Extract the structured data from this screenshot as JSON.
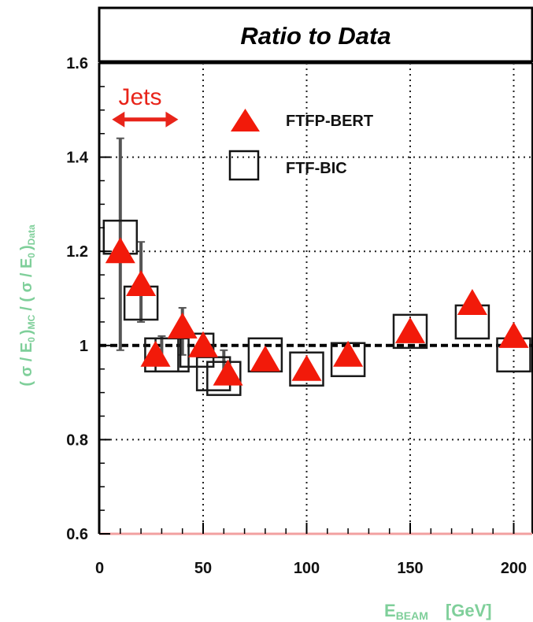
{
  "chart_data": {
    "type": "scatter",
    "title": "Ratio to Data",
    "xlabel": {
      "main": "E",
      "sub": "BEAM",
      "unit": "[GeV]"
    },
    "ylabel": {
      "open": "( σ / E",
      "sub0": "0",
      "mid": ")",
      "subMC": "MC",
      "slash": "/ ( σ / E",
      "sub1": "0",
      "close": ")",
      "subData": "Data"
    },
    "xlim": [
      0,
      205
    ],
    "ylim": [
      0.6,
      1.6
    ],
    "x_ticks": [
      0,
      50,
      100,
      150,
      200
    ],
    "x_tick_labels": [
      "0",
      "50",
      "100",
      "150",
      "200"
    ],
    "y_ticks": [
      0.6,
      0.8,
      1.0,
      1.2,
      1.4,
      1.6
    ],
    "y_tick_labels": [
      "0.6",
      "0.8",
      "1",
      "1.2",
      "1.4",
      "1.6"
    ],
    "grid": true,
    "reference_line": 1.0,
    "annotation": {
      "text": "Jets",
      "x_from": 6,
      "x_to": 38,
      "y": 1.48
    },
    "error_bars": [
      {
        "x": 10,
        "low": 0.99,
        "high": 1.44
      },
      {
        "x": 20,
        "low": 1.05,
        "high": 1.22
      },
      {
        "x": 30,
        "low": 0.96,
        "high": 1.02
      },
      {
        "x": 40,
        "low": 0.98,
        "high": 1.08
      },
      {
        "x": 60,
        "low": 0.92,
        "high": 0.99
      }
    ],
    "series": [
      {
        "name": "FTFP-BERT",
        "marker": "triangle",
        "color": "#f21a0a",
        "x": [
          10,
          20,
          27,
          40,
          50,
          62,
          80,
          100,
          120,
          150,
          180,
          200
        ],
        "y": [
          1.2,
          1.13,
          0.98,
          1.04,
          1.0,
          0.94,
          0.97,
          0.95,
          0.98,
          1.03,
          1.09,
          1.02
        ]
      },
      {
        "name": "FTF-BIC",
        "marker": "open-square",
        "color": "#1a1a1a",
        "x": [
          10,
          20,
          30,
          35,
          47,
          55,
          60,
          80,
          100,
          120,
          150,
          180,
          200
        ],
        "y": [
          1.23,
          1.09,
          0.98,
          0.98,
          0.99,
          0.94,
          0.93,
          0.98,
          0.95,
          0.97,
          1.03,
          1.05,
          0.98
        ]
      }
    ]
  },
  "colors": {
    "accent": "#f21a0a",
    "axis_label": "#7fcf9a",
    "frame_bottom": "#f2a0a0"
  }
}
